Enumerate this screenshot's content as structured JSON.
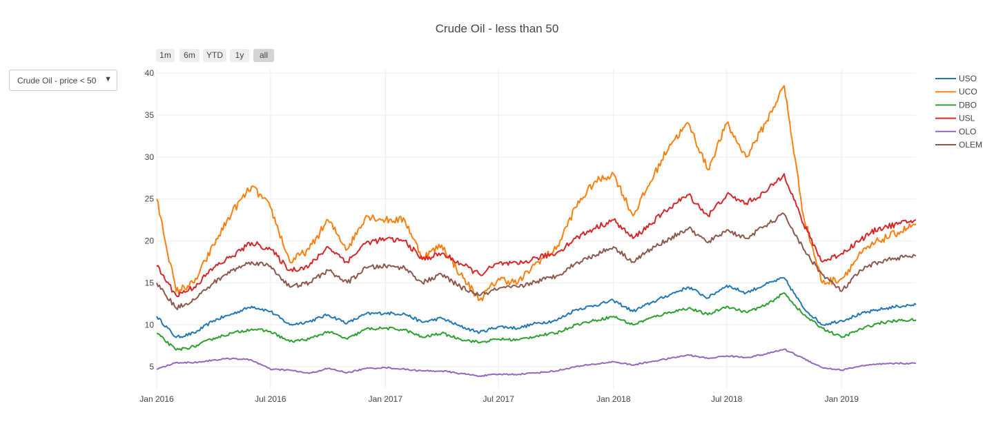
{
  "title": "Crude Oil - less than 50",
  "dropdown": {
    "selected": "Crude Oil - price < 50",
    "arrow_icon": "triangle-down-icon"
  },
  "range_selector": {
    "buttons": [
      {
        "label": "1m",
        "active": false
      },
      {
        "label": "6m",
        "active": false
      },
      {
        "label": "YTD",
        "active": false
      },
      {
        "label": "1y",
        "active": false
      },
      {
        "label": "all",
        "active": true
      }
    ]
  },
  "chart_data": {
    "type": "line",
    "title": "Crude Oil - less than 50",
    "xlabel": "",
    "ylabel": "",
    "x_range": [
      "2016-01-01",
      "2019-04-30"
    ],
    "ylim": [
      2.3,
      40.5
    ],
    "x_ticks": [
      {
        "date": "2016-01-01",
        "label": "Jan 2016"
      },
      {
        "date": "2016-07-01",
        "label": "Jul 2016"
      },
      {
        "date": "2017-01-01",
        "label": "Jan 2017"
      },
      {
        "date": "2017-07-01",
        "label": "Jul 2017"
      },
      {
        "date": "2018-01-01",
        "label": "Jan 2018"
      },
      {
        "date": "2018-07-01",
        "label": "Jul 2018"
      },
      {
        "date": "2019-01-01",
        "label": "Jan 2019"
      }
    ],
    "y_ticks": [
      5,
      10,
      15,
      20,
      25,
      30,
      35,
      40
    ],
    "grid": true,
    "legend": "right",
    "x": [
      "2016-01-01",
      "2016-02-01",
      "2016-03-01",
      "2016-04-01",
      "2016-05-01",
      "2016-06-01",
      "2016-07-01",
      "2016-08-01",
      "2016-09-01",
      "2016-10-01",
      "2016-11-01",
      "2016-12-01",
      "2017-01-01",
      "2017-02-01",
      "2017-03-01",
      "2017-04-01",
      "2017-05-01",
      "2017-06-01",
      "2017-07-01",
      "2017-08-01",
      "2017-09-01",
      "2017-10-01",
      "2017-11-01",
      "2017-12-01",
      "2018-01-01",
      "2018-02-01",
      "2018-03-01",
      "2018-04-01",
      "2018-05-01",
      "2018-06-01",
      "2018-07-01",
      "2018-08-01",
      "2018-09-01",
      "2018-10-01",
      "2018-11-01",
      "2018-12-01",
      "2019-01-01",
      "2019-02-01",
      "2019-03-01",
      "2019-04-01",
      "2019-04-30"
    ],
    "series": [
      {
        "name": "USO",
        "color": "#1f77b4",
        "values": [
          11.0,
          8.5,
          9.0,
          10.5,
          11.3,
          12.2,
          11.6,
          10.0,
          10.4,
          11.2,
          10.2,
          11.3,
          11.4,
          11.3,
          10.3,
          10.8,
          9.8,
          9.1,
          9.8,
          9.6,
          10.2,
          10.5,
          11.8,
          12.3,
          12.9,
          11.6,
          12.6,
          13.6,
          14.5,
          13.2,
          14.7,
          13.8,
          14.8,
          15.6,
          12.0,
          10.0,
          10.5,
          11.3,
          11.8,
          12.2,
          12.4
        ]
      },
      {
        "name": "UCO",
        "color": "#ff7f0e",
        "values": [
          25.0,
          14.0,
          15.0,
          19.5,
          23.5,
          26.5,
          24.0,
          17.5,
          19.0,
          22.5,
          19.0,
          23.0,
          22.5,
          22.5,
          18.0,
          19.5,
          16.0,
          13.0,
          15.5,
          15.0,
          17.5,
          19.0,
          24.0,
          27.0,
          28.0,
          23.0,
          27.0,
          31.5,
          34.0,
          28.5,
          34.0,
          30.0,
          34.0,
          38.5,
          23.0,
          15.0,
          15.5,
          18.5,
          20.0,
          21.0,
          22.0
        ]
      },
      {
        "name": "DBO",
        "color": "#2ca02c",
        "values": [
          9.0,
          7.0,
          7.4,
          8.4,
          9.0,
          9.5,
          9.2,
          8.0,
          8.3,
          9.2,
          8.3,
          9.5,
          9.6,
          9.4,
          8.5,
          9.0,
          8.3,
          7.9,
          8.3,
          8.2,
          8.7,
          9.0,
          10.0,
          10.5,
          11.0,
          10.0,
          10.8,
          11.5,
          12.0,
          11.2,
          12.2,
          11.5,
          12.3,
          13.8,
          11.2,
          9.6,
          8.5,
          9.5,
          10.2,
          10.5,
          10.6
        ]
      },
      {
        "name": "USL",
        "color": "#d62728",
        "values": [
          17.0,
          13.5,
          14.5,
          16.8,
          18.2,
          19.8,
          19.0,
          16.5,
          17.0,
          19.3,
          17.5,
          19.8,
          20.2,
          20.0,
          17.8,
          18.5,
          17.3,
          16.0,
          17.3,
          17.2,
          18.0,
          18.5,
          20.3,
          21.5,
          22.5,
          20.3,
          22.0,
          24.0,
          25.5,
          23.0,
          25.5,
          24.5,
          25.8,
          28.0,
          22.0,
          17.5,
          18.5,
          20.2,
          21.5,
          22.0,
          22.5
        ]
      },
      {
        "name": "OLO",
        "color": "#9467bd",
        "values": [
          4.7,
          5.5,
          5.5,
          5.8,
          6.0,
          5.8,
          4.7,
          4.6,
          4.2,
          4.8,
          4.3,
          4.8,
          4.9,
          4.7,
          4.5,
          4.5,
          4.2,
          3.9,
          4.1,
          4.1,
          4.3,
          4.5,
          5.0,
          5.3,
          5.6,
          5.2,
          5.6,
          6.0,
          6.4,
          6.0,
          6.3,
          6.1,
          6.5,
          7.1,
          6.0,
          4.9,
          4.6,
          5.1,
          5.3,
          5.4,
          5.4
        ]
      },
      {
        "name": "OLEM",
        "color": "#8c564b",
        "values": [
          15.0,
          12.0,
          13.0,
          15.0,
          16.5,
          17.5,
          17.0,
          14.5,
          15.0,
          16.5,
          15.0,
          16.8,
          17.0,
          16.8,
          15.0,
          16.0,
          14.5,
          13.5,
          14.3,
          14.5,
          15.2,
          15.8,
          17.3,
          18.3,
          19.3,
          17.5,
          19.0,
          20.3,
          21.5,
          19.8,
          21.3,
          20.3,
          21.8,
          23.2,
          19.0,
          16.0,
          14.0,
          16.5,
          17.5,
          18.0,
          18.2
        ]
      }
    ]
  }
}
